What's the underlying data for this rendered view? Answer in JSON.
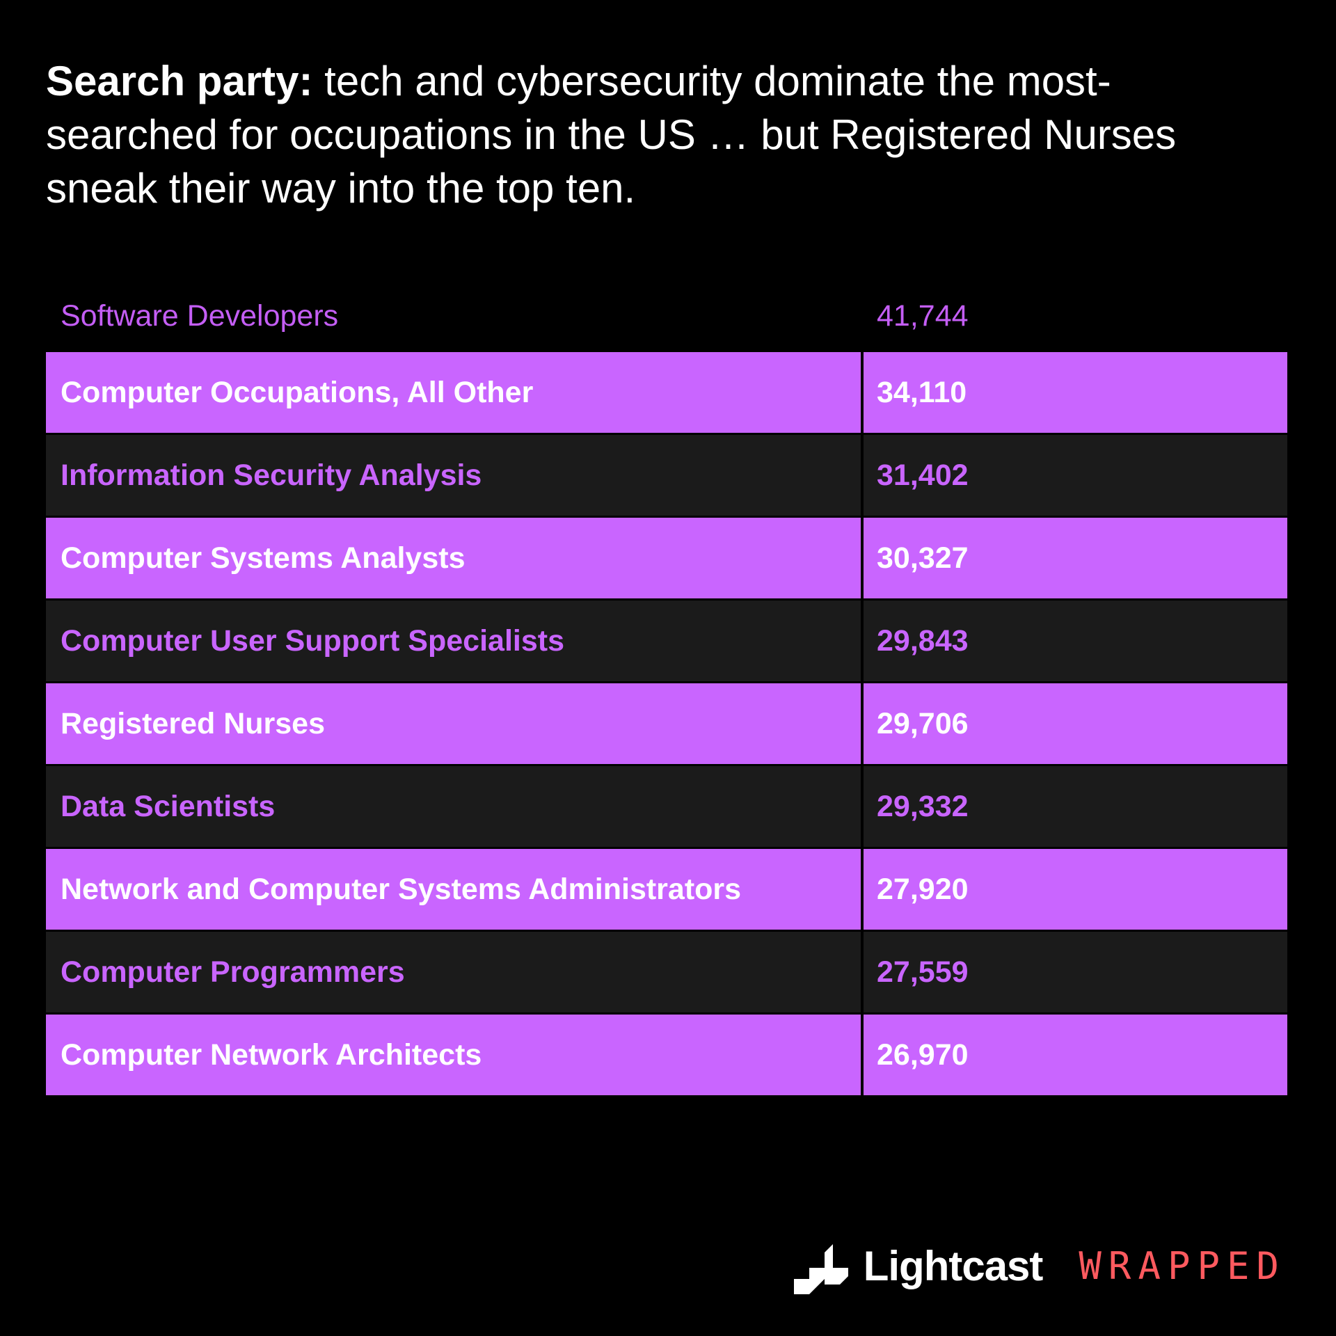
{
  "headline": {
    "lead": "Search party:",
    "text": " tech and cybersecurity dominate the most-searched for occupations in the US … but Registered Nurses sneak their way into the top ten."
  },
  "table": {
    "rows": [
      {
        "occupation": "Software Developers",
        "count": "41,744"
      },
      {
        "occupation": "Computer Occupations, All Other",
        "count": "34,110"
      },
      {
        "occupation": "Information Security Analysis",
        "count": "31,402"
      },
      {
        "occupation": "Computer Systems Analysts",
        "count": "30,327"
      },
      {
        "occupation": "Computer User Support Specialists",
        "count": "29,843"
      },
      {
        "occupation": "Registered Nurses",
        "count": "29,706"
      },
      {
        "occupation": "Data Scientists",
        "count": "29,332"
      },
      {
        "occupation": "Network and Computer Systems Administrators",
        "count": "27,920"
      },
      {
        "occupation": "Computer Programmers",
        "count": "27,559"
      },
      {
        "occupation": "Computer Network Architects",
        "count": "26,970"
      }
    ]
  },
  "brand": {
    "logo_icon": "lightcast-logo-icon",
    "name": "Lightcast",
    "tag": "WRAPPED"
  },
  "colors": {
    "background": "#000000",
    "accent_purple": "#c965ff",
    "dark_row": "#1b1b1b",
    "wrapped_red": "#ff5a5f"
  }
}
